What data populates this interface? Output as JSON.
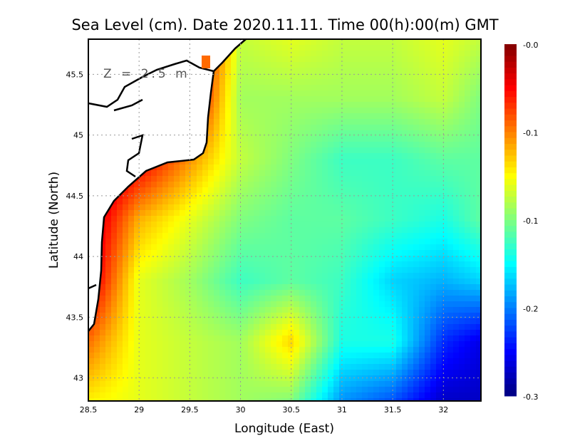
{
  "chart_data": {
    "type": "heatmap",
    "title": "Sea Level (cm). Date 2020.11.11. Time 00(h):00(m) GMT",
    "annotation": "Z = 2.5 m",
    "xlabel": "Longitude (East)",
    "ylabel": "Latitude (North)",
    "xlim": [
      28.5,
      32.37
    ],
    "ylim": [
      42.81,
      45.79
    ],
    "xticks": [
      28.5,
      29,
      29.5,
      30,
      30.5,
      31,
      31.5,
      32
    ],
    "xtick_labels": [
      "28.5",
      "29",
      "29.5",
      "30",
      "30.5",
      "31",
      "31.5",
      "32"
    ],
    "yticks": [
      43,
      43.5,
      44,
      44.5,
      45,
      45.5
    ],
    "ytick_labels": [
      "43",
      "43.5",
      "44",
      "44.5",
      "45",
      "45.5"
    ],
    "grid": true,
    "colorbar": {
      "range": [
        -0.3,
        0.0
      ],
      "colormap": "jet",
      "ticks": [
        0.0,
        -0.075,
        -0.15,
        -0.225,
        -0.3
      ],
      "tick_labels": [
        "-0.0",
        "-0.1",
        "-0.1",
        "-0.2",
        "-0.3"
      ]
    },
    "grid_lon": [
      28.5,
      29,
      29.5,
      30,
      30.5,
      31,
      31.5,
      32,
      32.37
    ],
    "grid_lat": [
      45.8,
      45.3,
      44.8,
      44.3,
      43.8,
      43.3,
      42.8
    ],
    "values": [
      [
        0.0,
        0.0,
        0.0,
        -0.13,
        -0.12,
        -0.13,
        -0.13,
        -0.12,
        -0.13
      ],
      [
        0.0,
        0.0,
        -0.02,
        -0.14,
        -0.14,
        -0.14,
        -0.14,
        -0.13,
        -0.15
      ],
      [
        0.0,
        -0.03,
        -0.08,
        -0.13,
        -0.15,
        -0.17,
        -0.17,
        -0.16,
        -0.16
      ],
      [
        -0.01,
        -0.09,
        -0.12,
        -0.15,
        -0.16,
        -0.16,
        -0.17,
        -0.18,
        -0.16
      ],
      [
        -0.02,
        -0.12,
        -0.14,
        -0.17,
        -0.16,
        -0.17,
        -0.2,
        -0.21,
        -0.2
      ],
      [
        -0.07,
        -0.12,
        -0.13,
        -0.14,
        -0.1,
        -0.18,
        -0.18,
        -0.25,
        -0.27
      ],
      [
        -0.11,
        -0.12,
        -0.13,
        -0.14,
        -0.15,
        -0.22,
        -0.24,
        -0.28,
        -0.28
      ]
    ]
  }
}
